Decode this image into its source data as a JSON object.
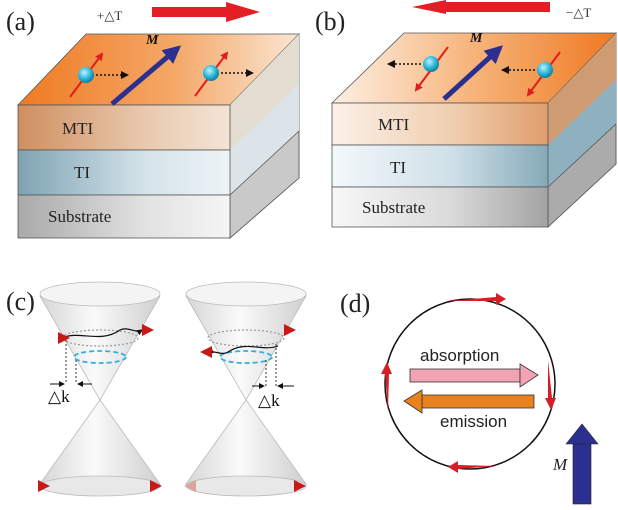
{
  "panels": {
    "a": {
      "label": "(a)",
      "temperature": "+△T",
      "magnetization": "M",
      "layers": [
        "MTI",
        "TI",
        "Substrate"
      ]
    },
    "b": {
      "label": "(b)",
      "temperature": "−△T",
      "magnetization": "M",
      "layers": [
        "MTI",
        "TI",
        "Substrate"
      ]
    },
    "c": {
      "label": "(c)",
      "momentum_shift_left": "△k",
      "momentum_shift_right": "△k"
    },
    "d": {
      "label": "(d)",
      "absorption": "absorption",
      "emission": "emission",
      "magnetization": "M"
    }
  },
  "colors": {
    "top_face_orange": "#f07f28",
    "mti_layer": "#d9a37a",
    "ti_layer": "#7fa4b5",
    "substrate_layer": "#a8a8a8",
    "spin_arrow_red": "#e11d1d",
    "magnetization_blue": "#2b2f8f",
    "absorption_pink": "#f4a3b4",
    "emission_orange": "#e8821e",
    "dirac_cone_gray": "#e6e6e6"
  }
}
